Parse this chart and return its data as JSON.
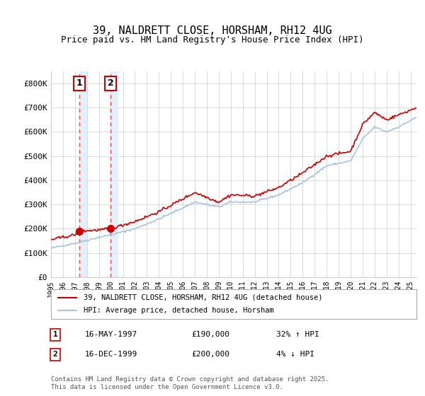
{
  "title1": "39, NALDRETT CLOSE, HORSHAM, RH12 4UG",
  "title2": "Price paid vs. HM Land Registry's House Price Index (HPI)",
  "ylabel_ticks": [
    "£0",
    "£100K",
    "£200K",
    "£300K",
    "£400K",
    "£500K",
    "£600K",
    "£700K",
    "£800K"
  ],
  "ylim": [
    0,
    850000
  ],
  "xlim_start": 1995.0,
  "xlim_end": 2025.5,
  "sale1_date": 1997.37,
  "sale1_price": 190000,
  "sale1_label": "1",
  "sale1_pct": "32% ↑ HPI",
  "sale1_date_str": "16-MAY-1997",
  "sale2_date": 1999.96,
  "sale2_price": 200000,
  "sale2_label": "2",
  "sale2_pct": "4% ↓ HPI",
  "sale2_date_str": "16-DEC-1999",
  "legend_line1": "39, NALDRETT CLOSE, HORSHAM, RH12 4UG (detached house)",
  "legend_line2": "HPI: Average price, detached house, Horsham",
  "footnote": "Contains HM Land Registry data © Crown copyright and database right 2025.\nThis data is licensed under the Open Government Licence v3.0.",
  "hpi_color": "#aac4e0",
  "price_color": "#cc0000",
  "sale_marker_color": "#cc0000",
  "vline_color": "#ff4444",
  "shade_color": "#ddeeff",
  "background_color": "#ffffff",
  "grid_color": "#cccccc"
}
